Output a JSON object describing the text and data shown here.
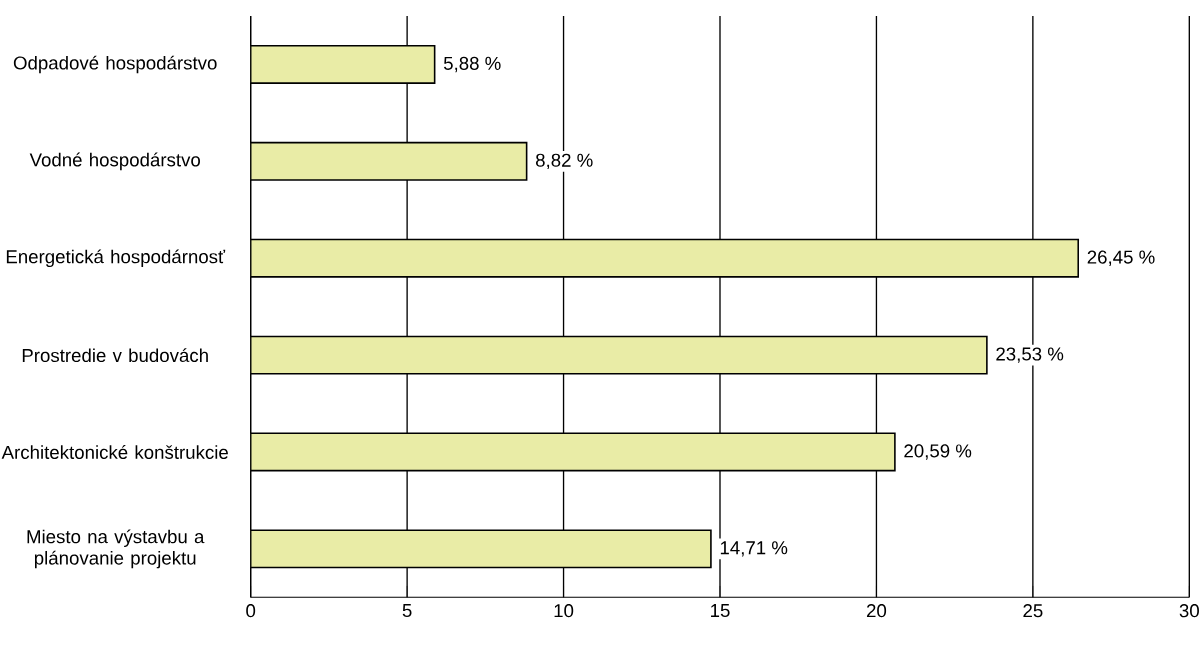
{
  "chart_data": {
    "type": "bar",
    "orientation": "horizontal",
    "categories": [
      "Odpadové hospodárstvo",
      "Vodné hospodárstvo",
      "Energetická hospodárnosť",
      "Prostredie v budovách",
      "Architektonické konštrukcie",
      "Miesto na výstavbu a plánovanie projektu"
    ],
    "values": [
      5.88,
      8.82,
      26.45,
      23.53,
      20.59,
      14.71
    ],
    "value_labels": [
      "5,88 %",
      "8,82 %",
      "26,45 %",
      "23,53 %",
      "20,59 %",
      "14,71 %"
    ],
    "color": "#e9eca6",
    "xlim": [
      0,
      30
    ],
    "xticks": [
      0,
      5,
      10,
      15,
      20,
      25,
      30
    ],
    "grid": "x"
  }
}
